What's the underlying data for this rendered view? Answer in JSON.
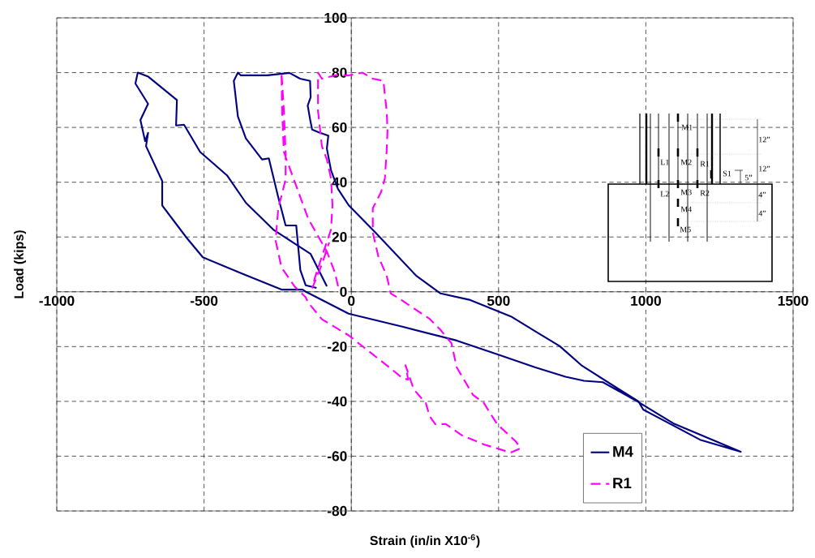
{
  "chart_data": {
    "type": "line",
    "xlabel": "Strain (in/in X10$^{-6}$)",
    "ylabel": "Load (kips)",
    "xlim": [
      -1000,
      1500
    ],
    "ylim": [
      -80,
      100
    ],
    "xticks": [
      -1000,
      -500,
      0,
      500,
      1000,
      1500
    ],
    "yticks": [
      -80,
      -60,
      -40,
      -20,
      0,
      20,
      40,
      60,
      80,
      100
    ],
    "grid": true,
    "legend": "bottom right",
    "marker": "none",
    "annotations": [
      "M1",
      "L1",
      "M2",
      "R1",
      "S1",
      "5”",
      "L2",
      "M3",
      "R2",
      "M4",
      "M5",
      "12”",
      "12”",
      "4”",
      "4”"
    ],
    "series": [
      {
        "name": "M4",
        "color": "#000080",
        "line_style": "solid",
        "x": [
          -83,
          -138,
          -265,
          -358,
          -422,
          -513,
          -568,
          -595,
          -592,
          -689,
          -725,
          -733,
          -690,
          -716,
          -700,
          -690,
          -697,
          -642,
          -642,
          -559,
          -504,
          -375,
          -237,
          -165,
          -154,
          -9,
          176,
          358,
          495,
          625,
          727,
          790,
          854,
          963,
          1093,
          1322,
          1184,
          991,
          975,
          909,
          781,
          707,
          633,
          542,
          404,
          303,
          220,
          82,
          -9,
          -45,
          -69,
          -83,
          -78,
          -110,
          -133,
          -140,
          -148,
          -138,
          -140,
          -174,
          -210,
          -285,
          -375,
          -385,
          -399,
          -385,
          -358,
          -303,
          -280,
          -248,
          -223,
          -187,
          -173,
          -155,
          -118
        ],
        "values": [
          2,
          13.8,
          22.7,
          32.5,
          42.5,
          51,
          61,
          60.7,
          70,
          78.5,
          80,
          76,
          68.6,
          62.7,
          55,
          58,
          53.2,
          40.4,
          31.5,
          19.7,
          12.6,
          6.8,
          0.8,
          0.8,
          0,
          -8,
          -12.8,
          -17.8,
          -22.8,
          -27.6,
          -31,
          -32.5,
          -33,
          -39.5,
          -48,
          -58.4,
          -54,
          -43,
          -40,
          -35.6,
          -26.8,
          -19.8,
          -15,
          -9,
          -3,
          -0.6,
          5.9,
          21.6,
          31.6,
          37.5,
          44.4,
          52.3,
          57,
          58.2,
          59.2,
          63,
          68,
          71,
          77,
          77.8,
          79.9,
          79,
          79,
          80,
          77,
          64,
          56,
          48.3,
          48.7,
          34.5,
          24.2,
          24.2,
          7.9,
          2.4,
          1.4
        ]
      },
      {
        "name": "R1",
        "color": "#ff00ff",
        "line_style": "dashed",
        "x": [
          -45,
          -55,
          -83,
          -146,
          -229,
          -235,
          -237,
          -229,
          -223,
          -223,
          -248,
          -257,
          -237,
          -193,
          -155,
          -146,
          -100,
          -9,
          38,
          120,
          176,
          193,
          184,
          212,
          239,
          253,
          266,
          285,
          321,
          376,
          450,
          541,
          574,
          560,
          495,
          450,
          413,
          358,
          340,
          303,
          266,
          156,
          134,
          120,
          92,
          73,
          73,
          101,
          114,
          120,
          123,
          120,
          109,
          73,
          38,
          -9,
          -55,
          -100,
          -113,
          -113,
          -100,
          -83,
          -69,
          -64,
          -69,
          -100,
          -124,
          -132,
          -100,
          -75
        ],
        "values": [
          2,
          6.8,
          14.7,
          26.6,
          51,
          66,
          80,
          66,
          51,
          41,
          30.5,
          18.7,
          8.9,
          2,
          -2,
          -4,
          -10,
          -15.9,
          -19.9,
          -26.8,
          -31.7,
          -32,
          -26.8,
          -35.6,
          -39,
          -40.6,
          -45.4,
          -48.3,
          -48.3,
          -52.4,
          -55.7,
          -58.7,
          -57.2,
          -54.8,
          -48.3,
          -40.6,
          -37.6,
          -27.6,
          -18.8,
          -13.9,
          -9.9,
          -2,
          -0.6,
          5.9,
          12.8,
          21.6,
          30.5,
          36.4,
          41.4,
          51.2,
          59.2,
          66,
          77,
          77.8,
          80,
          79,
          79,
          77.8,
          80,
          66,
          53.2,
          48.3,
          41.4,
          31.5,
          22.7,
          12.8,
          5,
          1.5,
          10,
          18
        ]
      }
    ]
  }
}
